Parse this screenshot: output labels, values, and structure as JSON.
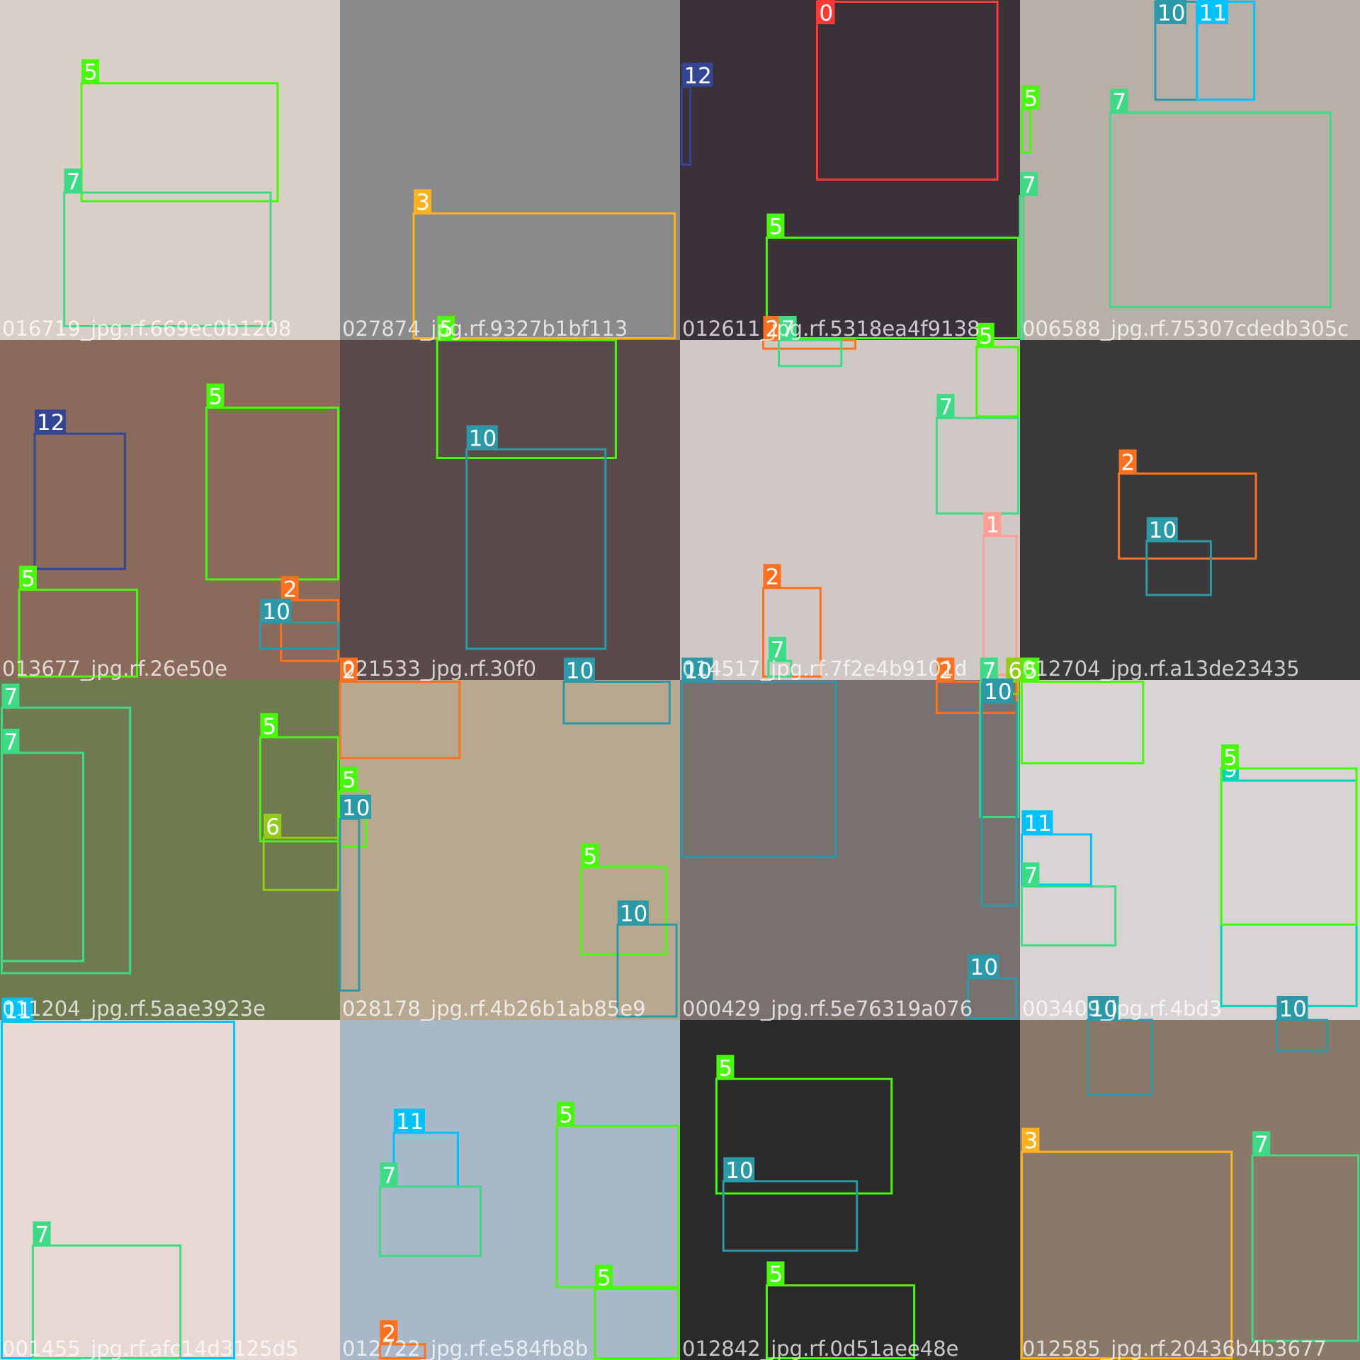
{
  "class_colors": [
    "#ff3838",
    "#ff9d97",
    "#ff701f",
    "#ffb21d",
    "#cfd231",
    "#48f90a",
    "#92cc17",
    "#3ddb86",
    "#1a9334",
    "#00d4bb",
    "#2c99a8",
    "#00c2ff",
    "#344593"
  ],
  "tiles": [
    {
      "filename": "016719_jpg.rf.669ec0b1208",
      "boxes": [
        {
          "label": "5"
        },
        {
          "label": "7"
        }
      ]
    },
    {
      "filename": "027874_jpg.rf.9327b1bf113",
      "boxes": [
        {
          "label": "3"
        }
      ]
    },
    {
      "filename": "012611_jpg.rf.5318ea4f9138",
      "boxes": [
        {
          "label": "0"
        },
        {
          "label": "12"
        },
        {
          "label": "5"
        }
      ]
    },
    {
      "filename": "006588_jpg.rf.75307cdedb305c",
      "boxes": [
        {
          "label": "10"
        },
        {
          "label": "11"
        },
        {
          "label": "5"
        },
        {
          "label": "7"
        },
        {
          "label": "7"
        }
      ]
    },
    {
      "filename": "013677_jpg.rf.26e50e",
      "boxes": [
        {
          "label": "12"
        },
        {
          "label": "5"
        },
        {
          "label": "5"
        },
        {
          "label": "2"
        },
        {
          "label": "10"
        }
      ]
    },
    {
      "filename": "021533_jpg.rf.30f0",
      "boxes": [
        {
          "label": "5"
        },
        {
          "label": "10"
        }
      ]
    },
    {
      "filename": "014517_jpg.rf.7f2e4b9101d",
      "boxes": [
        {
          "label": "2"
        },
        {
          "label": "7"
        },
        {
          "label": "5"
        },
        {
          "label": "7"
        },
        {
          "label": "1"
        },
        {
          "label": "2"
        },
        {
          "label": "7"
        }
      ]
    },
    {
      "filename": "012704_jpg.rf.a13de23435",
      "boxes": [
        {
          "label": "2"
        },
        {
          "label": "10"
        }
      ]
    },
    {
      "filename": "011204_jpg.rf.5aae3923e",
      "boxes": [
        {
          "label": "7"
        },
        {
          "label": "7"
        },
        {
          "label": "5"
        },
        {
          "label": "6"
        }
      ]
    },
    {
      "filename": "028178_jpg.rf.4b26b1ab85e9",
      "boxes": [
        {
          "label": "2"
        },
        {
          "label": "10"
        },
        {
          "label": "5"
        },
        {
          "label": "10"
        },
        {
          "label": "5"
        },
        {
          "label": "10"
        }
      ]
    },
    {
      "filename": "000429_jpg.rf.5e76319a076",
      "boxes": [
        {
          "label": "10"
        },
        {
          "label": "2"
        },
        {
          "label": "7"
        },
        {
          "label": "6"
        },
        {
          "label": "10"
        },
        {
          "label": "10"
        }
      ]
    },
    {
      "filename": "003409_jpg.rf.4bd3",
      "boxes": [
        {
          "label": "5"
        },
        {
          "label": "11"
        },
        {
          "label": "7"
        },
        {
          "label": "9"
        },
        {
          "label": "5"
        },
        {
          "label": "10"
        },
        {
          "label": "10"
        }
      ]
    },
    {
      "filename": "001455_jpg.rf.afc14d3125d5",
      "boxes": [
        {
          "label": "11"
        },
        {
          "label": "7"
        }
      ]
    },
    {
      "filename": "012722_jpg.rf.e584fb8b",
      "boxes": [
        {
          "label": "11"
        },
        {
          "label": "7"
        },
        {
          "label": "5"
        },
        {
          "label": "5"
        },
        {
          "label": "2"
        }
      ]
    },
    {
      "filename": "012842_jpg.rf.0d51aee48e",
      "boxes": [
        {
          "label": "5"
        },
        {
          "label": "10"
        },
        {
          "label": "5"
        }
      ]
    },
    {
      "filename": "012585_jpg.rf.20436b4b3677",
      "boxes": [
        {
          "label": "3"
        },
        {
          "label": "7"
        }
      ]
    }
  ]
}
